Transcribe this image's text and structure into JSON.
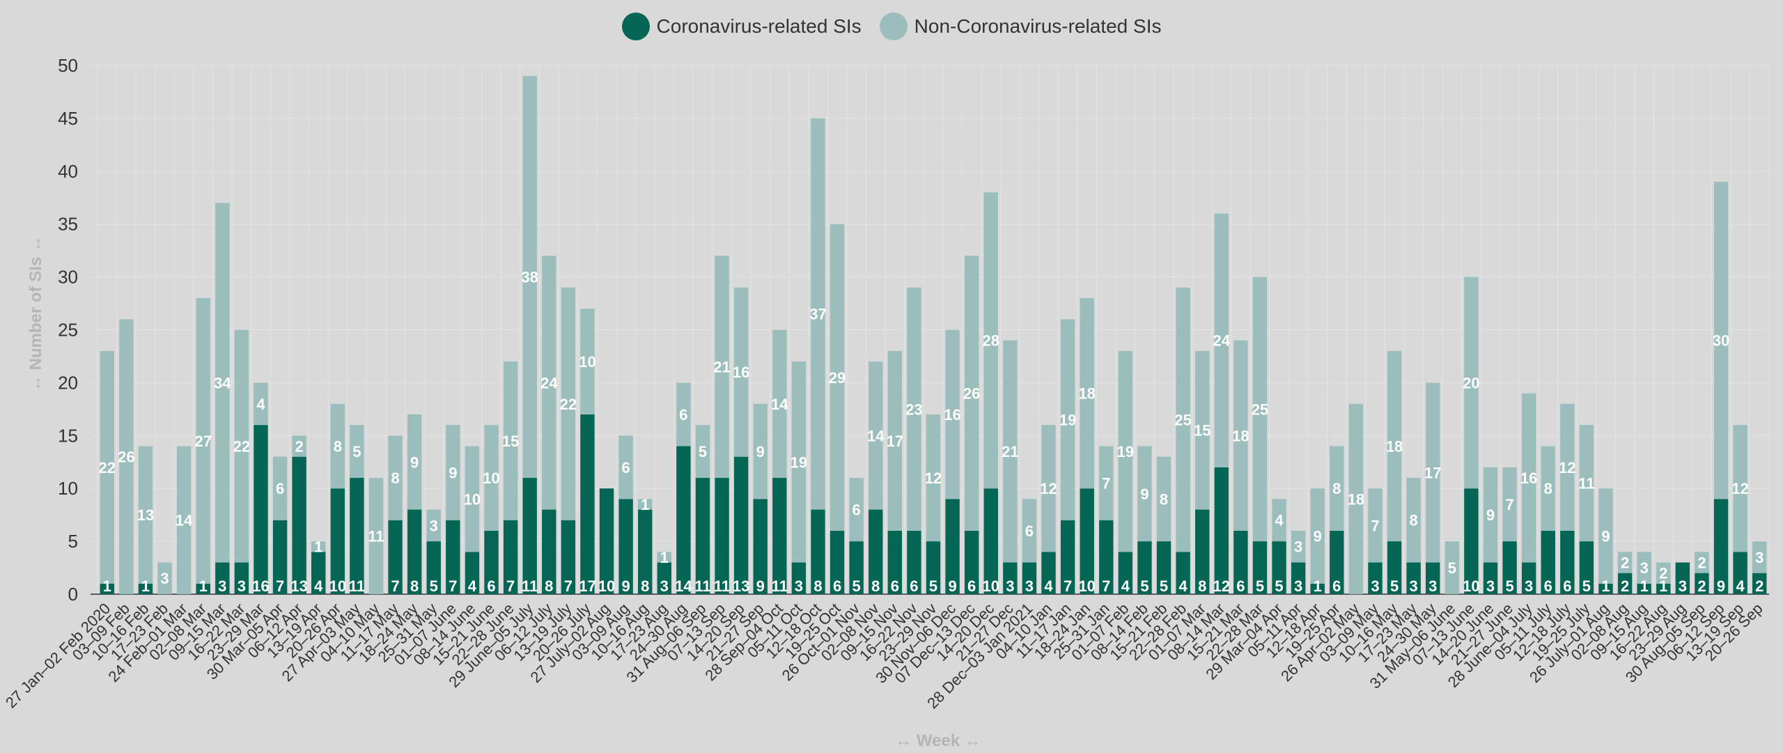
{
  "legend": {
    "series_a": "Coronavirus-related SIs",
    "series_b": "Non-Coronavirus-related SIs"
  },
  "colors": {
    "corona": "#056655",
    "non_corona": "#9bbebc"
  },
  "chart_data": {
    "type": "bar",
    "stacked": true,
    "title": "",
    "xlabel": "↔ Week ↔",
    "ylabel": "↔ Number of SIs ↔",
    "ylim": [
      0,
      50
    ],
    "yticks": [
      0,
      5,
      10,
      15,
      20,
      25,
      30,
      35,
      40,
      45,
      50
    ],
    "grid": true,
    "legend_position": "top-center",
    "categories": [
      "27 Jan–02 Feb 2020",
      "03–09 Feb",
      "10–16 Feb",
      "17–23 Feb",
      "24 Feb–01 Mar",
      "02–08 Mar",
      "09–15 Mar",
      "16–22 Mar",
      "23–29 Mar",
      "30 Mar–05 Apr",
      "06–12 Apr",
      "13–19 Apr",
      "20–26 Apr",
      "27 Apr–03 May",
      "04–10 May",
      "11–17 May",
      "18–24 May",
      "25–31 May",
      "01–07 June",
      "08–14 June",
      "15–21 June",
      "22–28 June",
      "29 June–05 July",
      "06–12 July",
      "13–19 July",
      "20–26 July",
      "27 July–02 Aug",
      "03–09 Aug",
      "10–16 Aug",
      "17–23 Aug",
      "24–30 Aug",
      "31 Aug–06 Sep",
      "07–13 Sep",
      "14–20 Sep",
      "21–27 Sep",
      "28 Sep–04 Oct",
      "05–11 Oct",
      "12–18 Oct",
      "19–25 Oct",
      "26 Oct–01 Nov",
      "02–08 Nov",
      "09–15 Nov",
      "16–22 Nov",
      "23–29 Nov",
      "30 Nov–06 Dec",
      "07 Dec–13 Dec",
      "14–20 Dec",
      "21–27 Dec",
      "28 Dec–03 Jan 2021",
      "04–10 Jan",
      "11–17 Jan",
      "18–24 Jan",
      "25–31 Jan",
      "01–07 Feb",
      "08–14 Feb",
      "15–21 Feb",
      "22–28 Feb",
      "01–07 Mar",
      "08–14 Mar",
      "15–21 Mar",
      "22–28 Mar",
      "29 Mar–04 Apr",
      "05–11 Apr",
      "12–18 Apr",
      "19–25 Apr",
      "26 Apr–02 May",
      "03–09 May",
      "10–16 May",
      "17–23 May",
      "24–30 May",
      "31 May–06 June",
      "07–13 June",
      "14–20 June",
      "21–27 June",
      "28 June–04 July",
      "05–11 July",
      "12–18 July",
      "19–25 July",
      "26 July–01 Aug",
      "02–08 Aug",
      "09–15 Aug",
      "16–22 Aug",
      "23–29 Aug",
      "30 Aug–05 Sep",
      "06–12 Sep",
      "13–19 Sep",
      "20–26 Sep"
    ],
    "series": [
      {
        "name": "Coronavirus-related SIs",
        "values": [
          1,
          0,
          1,
          0,
          0,
          1,
          3,
          3,
          16,
          7,
          13,
          4,
          10,
          11,
          0,
          7,
          8,
          5,
          7,
          4,
          6,
          7,
          11,
          8,
          7,
          17,
          10,
          9,
          8,
          3,
          14,
          11,
          11,
          13,
          9,
          11,
          3,
          8,
          6,
          5,
          8,
          6,
          6,
          5,
          9,
          6,
          10,
          3,
          3,
          4,
          7,
          10,
          7,
          4,
          5,
          5,
          4,
          8,
          12,
          6,
          5,
          5,
          3,
          1,
          6,
          0,
          3,
          5,
          3,
          3,
          0,
          10,
          3,
          5,
          3,
          6,
          6,
          5,
          1,
          2,
          1,
          1,
          3,
          2,
          9,
          4,
          2
        ]
      },
      {
        "name": "Non-Coronavirus-related SIs",
        "values": [
          22,
          26,
          13,
          3,
          14,
          27,
          34,
          22,
          4,
          6,
          2,
          1,
          8,
          5,
          11,
          8,
          9,
          3,
          9,
          10,
          10,
          15,
          38,
          24,
          22,
          10,
          0,
          6,
          1,
          1,
          6,
          5,
          21,
          16,
          9,
          14,
          19,
          37,
          29,
          6,
          14,
          17,
          23,
          12,
          16,
          26,
          28,
          21,
          6,
          12,
          19,
          18,
          7,
          19,
          9,
          8,
          25,
          15,
          24,
          18,
          25,
          4,
          3,
          9,
          8,
          18,
          7,
          18,
          8,
          17,
          5,
          20,
          9,
          7,
          16,
          8,
          12,
          11,
          9,
          2,
          3,
          2,
          0,
          2,
          30,
          12,
          3
        ]
      }
    ]
  }
}
